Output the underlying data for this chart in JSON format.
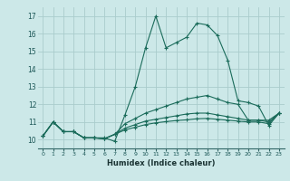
{
  "title": "",
  "xlabel": "Humidex (Indice chaleur)",
  "bg_color": "#cce8e8",
  "grid_color": "#aacccc",
  "line_color": "#1a6b5a",
  "xlim": [
    -0.5,
    23.5
  ],
  "ylim": [
    9.5,
    17.5
  ],
  "xticks": [
    0,
    1,
    2,
    3,
    4,
    5,
    6,
    7,
    8,
    9,
    10,
    11,
    12,
    13,
    14,
    15,
    16,
    17,
    18,
    19,
    20,
    21,
    22,
    23
  ],
  "yticks": [
    10,
    11,
    12,
    13,
    14,
    15,
    16,
    17
  ],
  "series": [
    [
      0,
      10.2,
      1,
      11.0,
      2,
      10.45,
      3,
      10.45,
      4,
      10.1,
      5,
      10.1,
      6,
      10.1,
      7,
      9.9,
      8,
      11.4,
      9,
      13.0,
      10,
      15.2,
      11,
      17.0,
      12,
      15.2,
      13,
      15.5,
      14,
      15.8,
      15,
      16.6,
      16,
      16.5,
      17,
      15.9,
      18,
      14.5,
      19,
      12.2,
      20,
      12.1,
      21,
      11.9,
      22,
      10.8,
      23,
      11.5
    ],
    [
      0,
      10.2,
      1,
      11.0,
      2,
      10.45,
      3,
      10.45,
      4,
      10.1,
      5,
      10.1,
      6,
      10.05,
      7,
      10.3,
      8,
      10.9,
      9,
      11.2,
      10,
      11.5,
      11,
      11.7,
      12,
      11.9,
      13,
      12.1,
      14,
      12.3,
      15,
      12.4,
      16,
      12.5,
      17,
      12.3,
      18,
      12.1,
      19,
      12.0,
      20,
      11.1,
      21,
      11.1,
      22,
      11.1,
      23,
      11.5
    ],
    [
      0,
      10.2,
      1,
      11.0,
      2,
      10.45,
      3,
      10.45,
      4,
      10.1,
      5,
      10.1,
      6,
      10.05,
      7,
      10.3,
      8,
      10.65,
      9,
      10.85,
      10,
      11.05,
      11,
      11.15,
      12,
      11.25,
      13,
      11.35,
      14,
      11.45,
      15,
      11.5,
      16,
      11.5,
      17,
      11.4,
      18,
      11.3,
      19,
      11.2,
      20,
      11.1,
      21,
      11.1,
      22,
      11.0,
      23,
      11.5
    ],
    [
      0,
      10.2,
      1,
      11.0,
      2,
      10.45,
      3,
      10.45,
      4,
      10.1,
      5,
      10.1,
      6,
      10.05,
      7,
      10.3,
      8,
      10.55,
      9,
      10.7,
      10,
      10.85,
      11,
      10.95,
      12,
      11.02,
      13,
      11.08,
      14,
      11.12,
      15,
      11.18,
      16,
      11.2,
      17,
      11.15,
      18,
      11.1,
      19,
      11.05,
      20,
      11.0,
      21,
      11.0,
      22,
      10.9,
      23,
      11.5
    ]
  ]
}
